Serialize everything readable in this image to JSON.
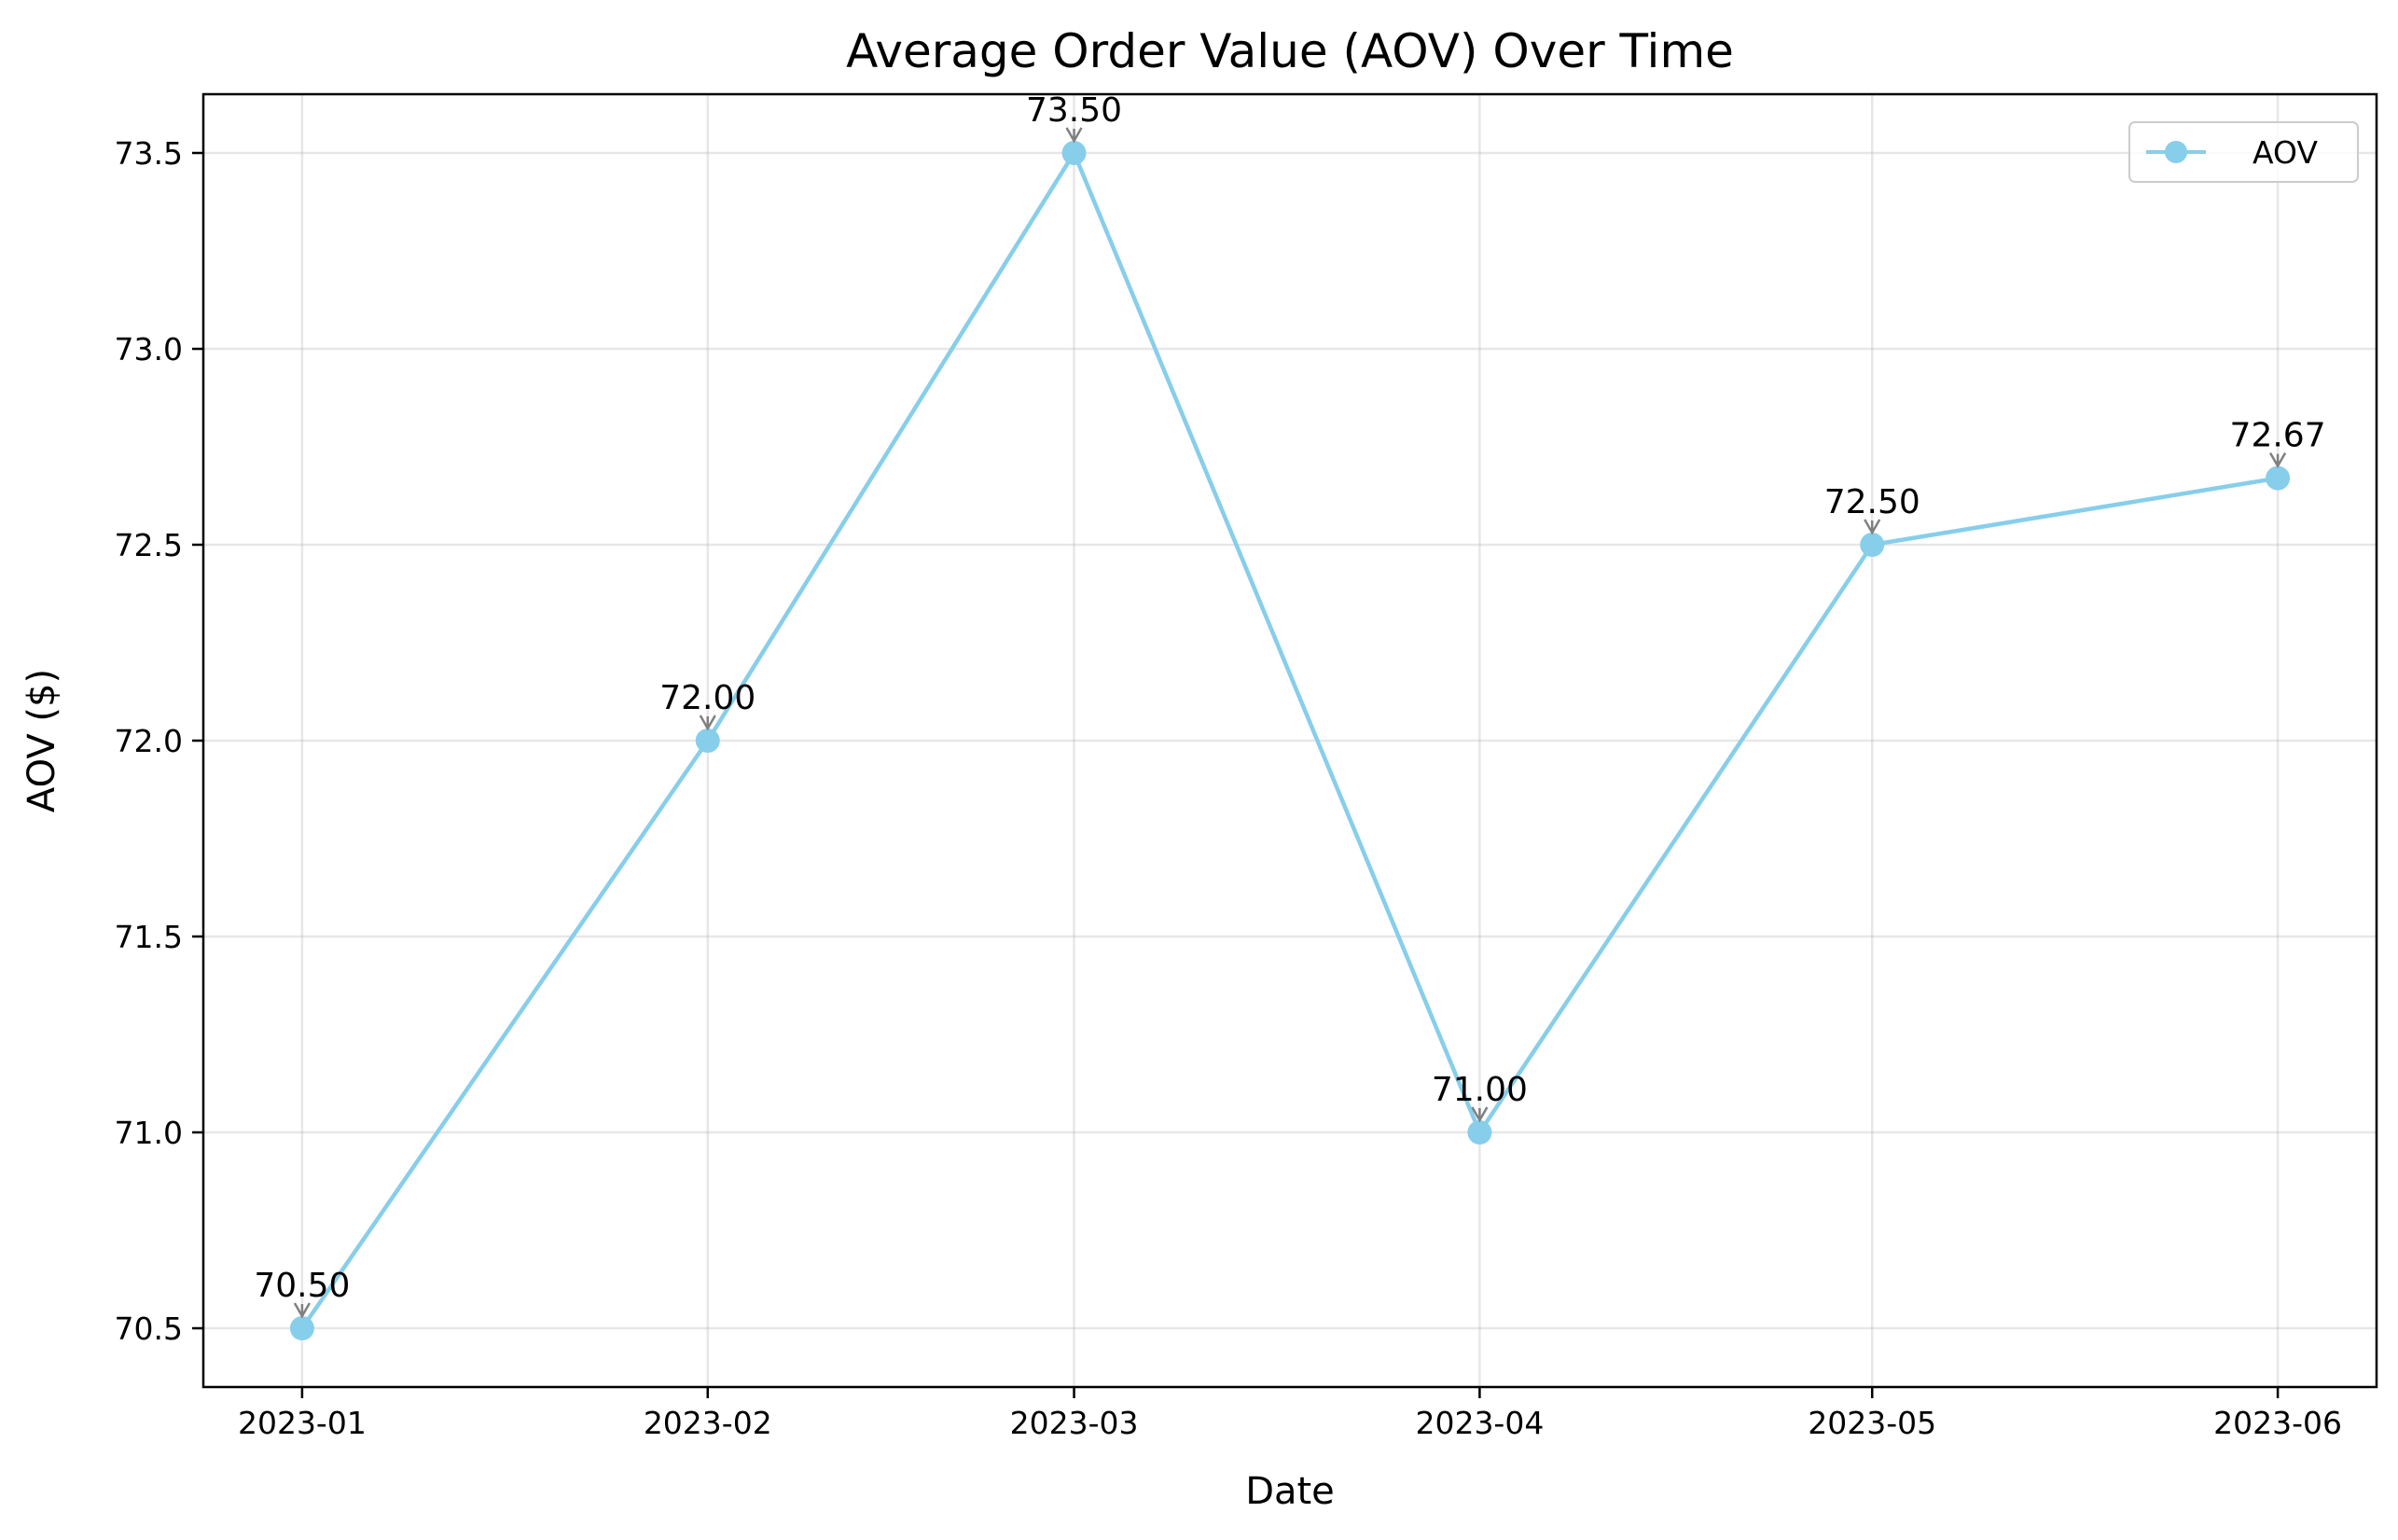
{
  "chart_data": {
    "type": "line",
    "title": "Average Order Value (AOV) Over Time",
    "xlabel": "Date",
    "ylabel": "AOV ($)",
    "categories": [
      "2023-01",
      "2023-02",
      "2023-03",
      "2023-04",
      "2023-05",
      "2023-06"
    ],
    "x_dates": [
      "2023-01-01",
      "2023-02-01",
      "2023-03-01",
      "2023-04-01",
      "2023-05-01",
      "2023-06-01"
    ],
    "series": [
      {
        "name": "AOV",
        "values": [
          70.5,
          72.0,
          73.5,
          71.0,
          72.5,
          72.67
        ],
        "labels": [
          "70.50",
          "72.00",
          "73.50",
          "71.00",
          "72.50",
          "72.67"
        ],
        "color": "#87ceeb"
      }
    ],
    "ylim": [
      70.35,
      73.65
    ],
    "y_ticks": [
      70.5,
      71.0,
      71.5,
      72.0,
      72.5,
      73.0,
      73.5
    ],
    "y_tick_labels": [
      "70.5",
      "71.0",
      "71.5",
      "72.0",
      "72.5",
      "73.0",
      "73.5"
    ],
    "grid": true,
    "legend_position": "upper-right",
    "annotation_arrow_color": "#808080"
  }
}
